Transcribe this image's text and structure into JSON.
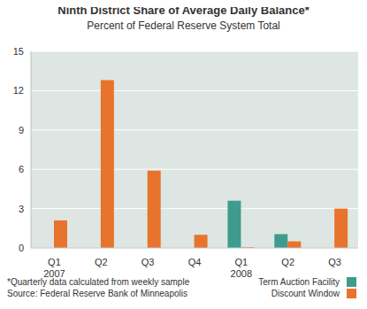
{
  "chart_data": {
    "type": "bar",
    "title": "Ninth District Share of Average Daily Balance*",
    "subtitle": "Percent of Federal Reserve System Total",
    "categories": [
      "Q1 2007",
      "Q2",
      "Q3",
      "Q4",
      "Q1 2008",
      "Q2",
      "Q3"
    ],
    "series": [
      {
        "name": "Term Auction Facility",
        "color": "#3f9c8c",
        "values": [
          null,
          null,
          null,
          null,
          3.6,
          1.05,
          null
        ]
      },
      {
        "name": "Discount Window",
        "color": "#e8732c",
        "values": [
          2.1,
          12.8,
          5.9,
          1.0,
          0.05,
          0.5,
          3.0
        ]
      }
    ],
    "ylim": [
      0,
      15
    ],
    "yticks": [
      0,
      3,
      6,
      9,
      12,
      15
    ],
    "grid": true,
    "legend": "lower right",
    "annotations": [
      "*Quarterly data calculated from weekly sample",
      "Source: Federal Reserve Bank of Minneapolis"
    ]
  }
}
